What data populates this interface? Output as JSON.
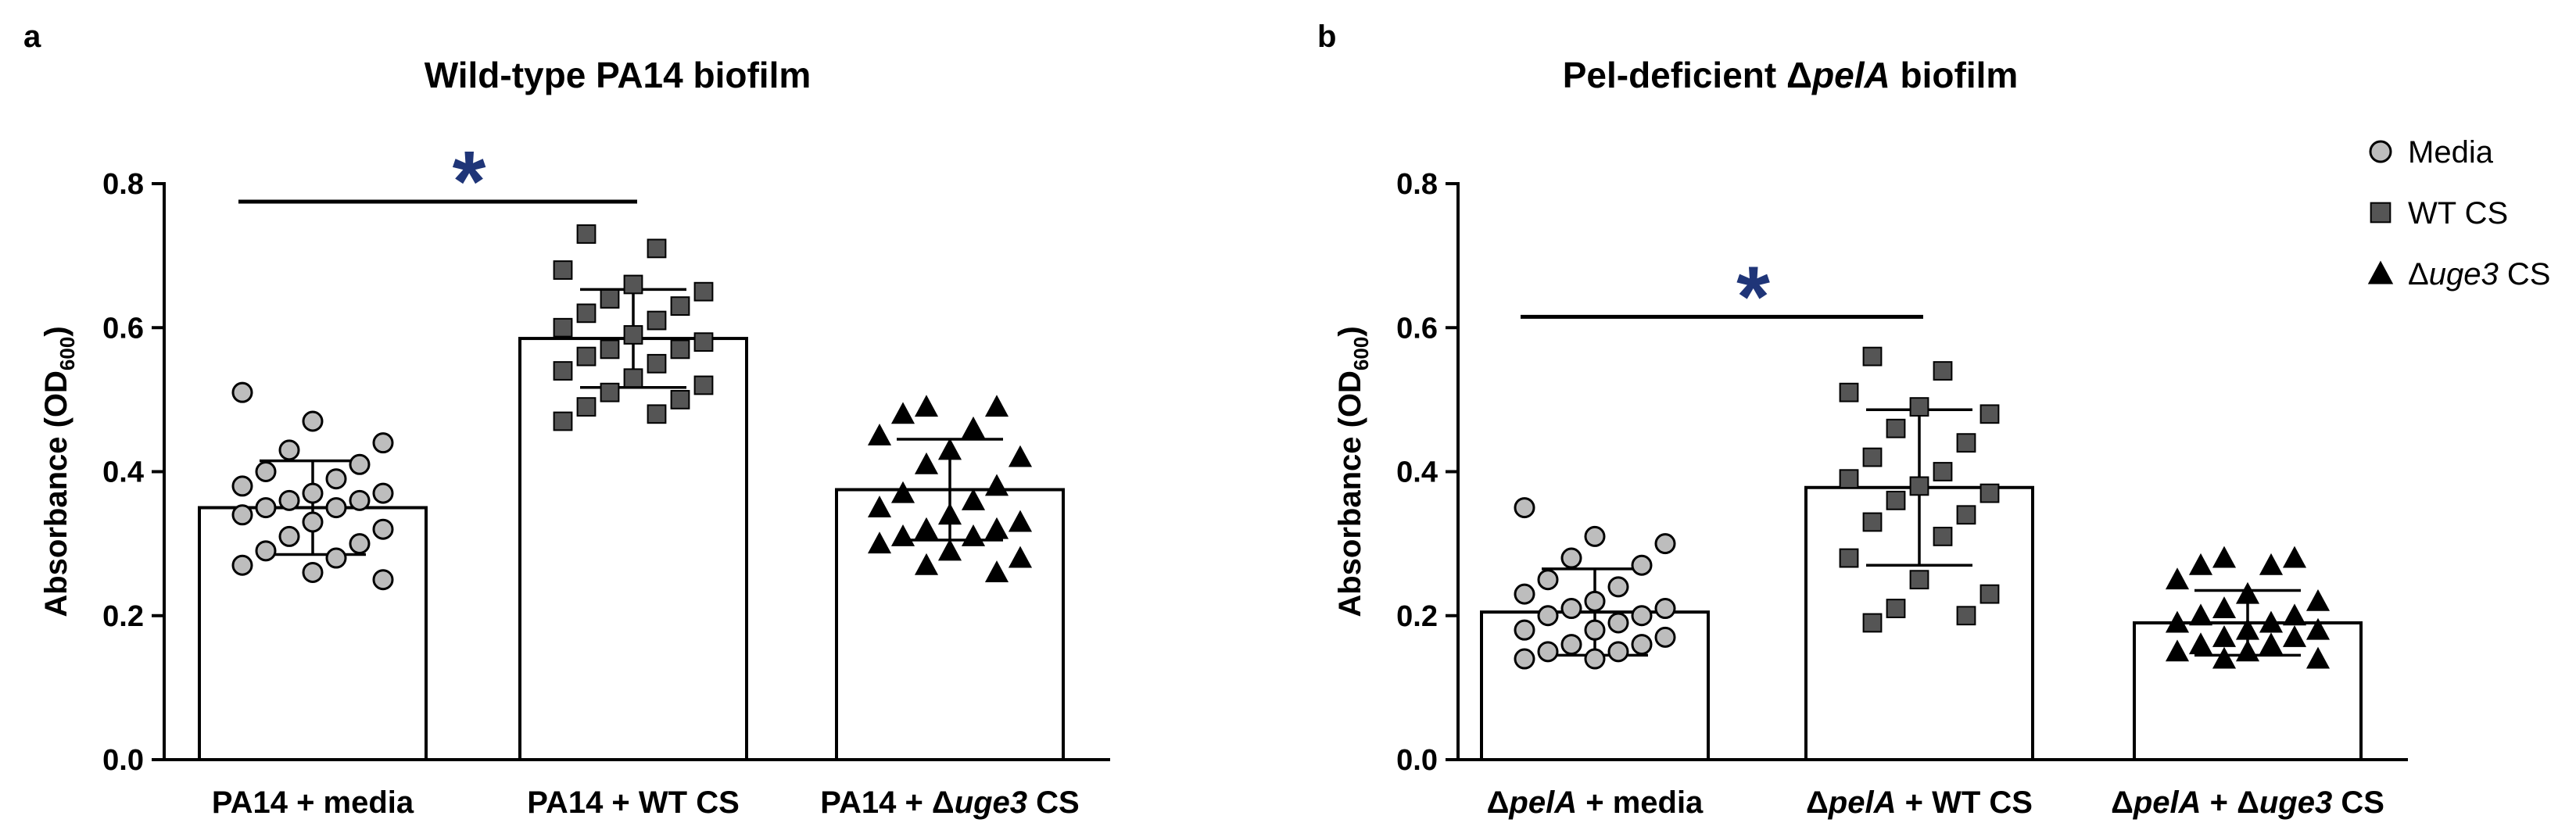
{
  "chart_data": [
    {
      "panel_label": "a",
      "type": "bar",
      "title_parts": [
        {
          "text": "Wild-type PA14 biofilm",
          "italic": false
        }
      ],
      "ylabel": "Absorbance (OD",
      "ylabel_sub": "600",
      "ylabel_close": ")",
      "ylim": [
        0,
        0.8
      ],
      "yticks": [
        "0.0",
        "0.2",
        "0.4",
        "0.6",
        "0.8"
      ],
      "categories": [
        [
          {
            "text": "PA14 + media",
            "italic": false
          }
        ],
        [
          {
            "text": "PA14 + WT CS",
            "italic": false
          }
        ],
        [
          {
            "text": "PA14 + Δ",
            "italic": false
          },
          {
            "text": "uge3",
            "italic": true
          },
          {
            "text": " CS",
            "italic": false
          }
        ]
      ],
      "series": [
        {
          "name": "Media",
          "marker": "circle",
          "color": "#bdbdbd",
          "mean": 0.35,
          "sd": 0.065,
          "points": [
            0.51,
            0.47,
            0.44,
            0.43,
            0.41,
            0.4,
            0.39,
            0.38,
            0.37,
            0.37,
            0.36,
            0.36,
            0.35,
            0.35,
            0.34,
            0.33,
            0.32,
            0.31,
            0.3,
            0.29,
            0.28,
            0.27,
            0.26,
            0.25
          ]
        },
        {
          "name": "WT CS",
          "marker": "square",
          "color": "#555555",
          "mean": 0.585,
          "sd": 0.068,
          "points": [
            0.73,
            0.71,
            0.68,
            0.66,
            0.65,
            0.64,
            0.63,
            0.62,
            0.61,
            0.6,
            0.59,
            0.58,
            0.57,
            0.57,
            0.56,
            0.55,
            0.54,
            0.53,
            0.52,
            0.51,
            0.5,
            0.49,
            0.48,
            0.47
          ]
        },
        {
          "name": "Δuge3 CS",
          "marker": "triangle",
          "color": "#000000",
          "mean": 0.375,
          "sd": 0.07,
          "points": [
            0.49,
            0.49,
            0.48,
            0.46,
            0.45,
            0.43,
            0.42,
            0.41,
            0.38,
            0.37,
            0.36,
            0.35,
            0.34,
            0.33,
            0.32,
            0.32,
            0.31,
            0.31,
            0.3,
            0.29,
            0.28,
            0.27,
            0.26
          ]
        }
      ],
      "significance": {
        "from": 0,
        "to": 1,
        "y": 0.775,
        "label": "*"
      }
    },
    {
      "panel_label": "b",
      "type": "bar",
      "title_parts": [
        {
          "text": "Pel-deficient Δ",
          "italic": false
        },
        {
          "text": "pelA",
          "italic": true
        },
        {
          "text": " biofilm",
          "italic": false
        }
      ],
      "ylabel": "Absorbance (OD",
      "ylabel_sub": "600",
      "ylabel_close": ")",
      "ylim": [
        0,
        0.8
      ],
      "yticks": [
        "0.0",
        "0.2",
        "0.4",
        "0.6",
        "0.8"
      ],
      "categories": [
        [
          {
            "text": "Δ",
            "italic": false
          },
          {
            "text": "pelA",
            "italic": true
          },
          {
            "text": " + media",
            "italic": false
          }
        ],
        [
          {
            "text": "Δ",
            "italic": false
          },
          {
            "text": "pelA",
            "italic": true
          },
          {
            "text": " + WT CS",
            "italic": false
          }
        ],
        [
          {
            "text": "Δ",
            "italic": false
          },
          {
            "text": "pelA",
            "italic": true
          },
          {
            "text": " + Δ",
            "italic": false
          },
          {
            "text": "uge3",
            "italic": true
          },
          {
            "text": " CS",
            "italic": false
          }
        ]
      ],
      "series": [
        {
          "name": "Media",
          "marker": "circle",
          "color": "#bdbdbd",
          "mean": 0.205,
          "sd": 0.06,
          "points": [
            0.35,
            0.31,
            0.3,
            0.28,
            0.27,
            0.25,
            0.24,
            0.23,
            0.22,
            0.21,
            0.21,
            0.2,
            0.2,
            0.19,
            0.18,
            0.18,
            0.17,
            0.16,
            0.16,
            0.15,
            0.15,
            0.14,
            0.14
          ]
        },
        {
          "name": "WT CS",
          "marker": "square",
          "color": "#555555",
          "mean": 0.378,
          "sd": 0.108,
          "points": [
            0.56,
            0.54,
            0.51,
            0.49,
            0.48,
            0.46,
            0.44,
            0.42,
            0.4,
            0.39,
            0.38,
            0.37,
            0.36,
            0.34,
            0.33,
            0.31,
            0.28,
            0.25,
            0.23,
            0.21,
            0.2,
            0.19
          ]
        },
        {
          "name": "Δuge3 CS",
          "marker": "triangle",
          "color": "#000000",
          "mean": 0.19,
          "sd": 0.045,
          "points": [
            0.28,
            0.28,
            0.27,
            0.27,
            0.25,
            0.23,
            0.22,
            0.21,
            0.2,
            0.2,
            0.19,
            0.19,
            0.18,
            0.18,
            0.17,
            0.17,
            0.16,
            0.16,
            0.15,
            0.15,
            0.14,
            0.14
          ]
        }
      ],
      "significance": {
        "from": 0,
        "to": 1,
        "y": 0.615,
        "label": "*"
      }
    }
  ],
  "legend": [
    {
      "marker": "circle",
      "color": "#bdbdbd",
      "parts": [
        {
          "text": "Media",
          "italic": false
        }
      ]
    },
    {
      "marker": "square",
      "color": "#555555",
      "parts": [
        {
          "text": "WT CS",
          "italic": false
        }
      ]
    },
    {
      "marker": "triangle",
      "color": "#000000",
      "parts": [
        {
          "text": "Δ",
          "italic": false
        },
        {
          "text": "uge3",
          "italic": true
        },
        {
          "text": " CS",
          "italic": false
        }
      ]
    }
  ]
}
